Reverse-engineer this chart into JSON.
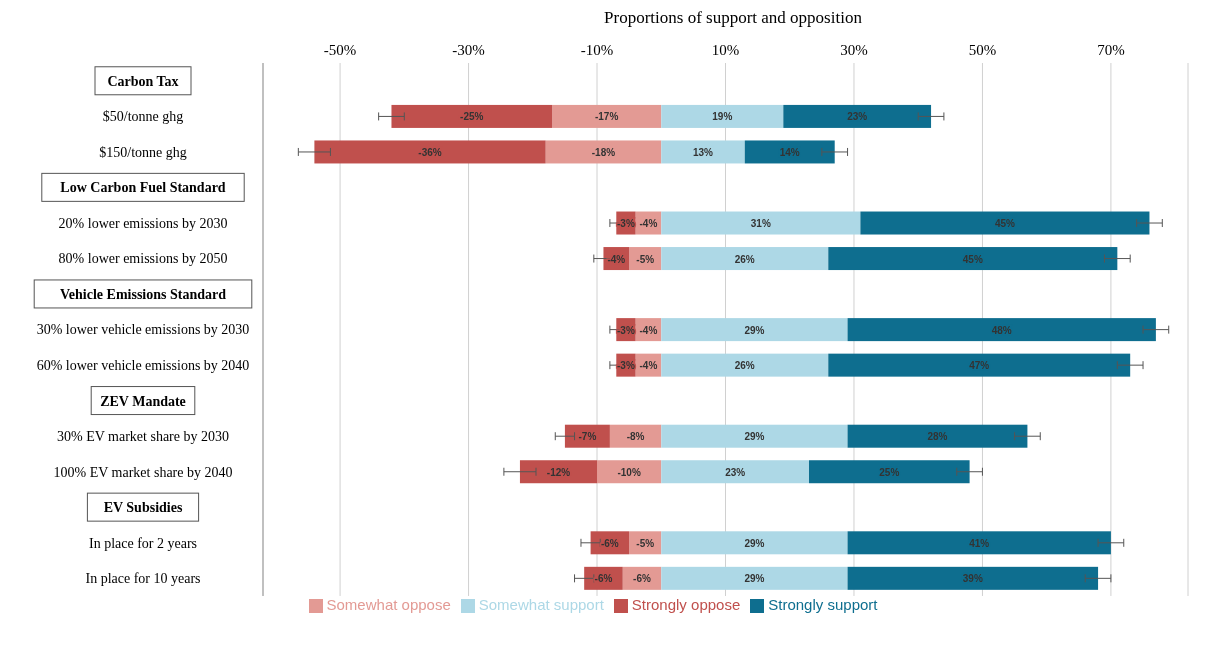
{
  "chart_data": {
    "type": "bar",
    "orientation": "horizontal",
    "stacked": true,
    "xlabel": "Proportions of support and opposition",
    "categories": [
      "Carbon Tax",
      "$50/tonne ghg",
      "$150/tonne ghg",
      "Low Carbon Fuel Standard",
      "20% lower emissions by 2030",
      "80% lower emissions by 2050",
      "Vehicle Emissions Standard",
      "30% lower vehicle emissions by 2030",
      "60% lower vehicle emissions by 2040",
      "ZEV Mandate",
      "30% EV market share by 2030",
      "100% EV market share by 2040",
      "EV Subsidies",
      "In place for 2 years",
      "In place for 10 years"
    ],
    "series": [
      {
        "name": "Somewhat oppose",
        "color": "#e39a94",
        "values": [
          null,
          -17,
          -18,
          null,
          -4,
          -5,
          null,
          -4,
          -4,
          null,
          -8,
          -10,
          null,
          -5,
          -6
        ],
        "value_labels": [
          null,
          "-17%",
          "-18%",
          null,
          "-4%",
          "-5%",
          null,
          "-4%",
          "-4%",
          null,
          "-8%",
          "-10%",
          null,
          "-5%",
          "-6%"
        ]
      },
      {
        "name": "Strongly oppose",
        "color": "#c0504d",
        "values": [
          null,
          -25,
          -36,
          null,
          -3,
          -4,
          null,
          -3,
          -3,
          null,
          -7,
          -12,
          null,
          -6,
          -6
        ],
        "value_labels": [
          null,
          "-25%",
          "-36%",
          null,
          "-3%",
          "-4%",
          null,
          "-3%",
          "-3%",
          null,
          "-7%",
          "-12%",
          null,
          "-6%",
          "-6%"
        ],
        "errors": [
          null,
          2,
          2.5,
          null,
          1,
          1.5,
          null,
          1,
          1,
          null,
          1.5,
          2.5,
          null,
          1.5,
          1.5
        ]
      },
      {
        "name": "Somewhat support",
        "color": "#add8e6",
        "values": [
          null,
          19,
          13,
          null,
          31,
          26,
          null,
          29,
          26,
          null,
          29,
          23,
          null,
          29,
          29
        ],
        "value_labels": [
          null,
          "19%",
          "13%",
          null,
          "31%",
          "26%",
          null,
          "29%",
          "26%",
          null,
          "29%",
          "23%",
          null,
          "29%",
          "29%"
        ]
      },
      {
        "name": "Strongly support",
        "color": "#0e6e8f",
        "values": [
          null,
          23,
          14,
          null,
          45,
          45,
          null,
          48,
          47,
          null,
          28,
          25,
          null,
          41,
          39
        ],
        "value_labels": [
          null,
          "23%",
          "14%",
          null,
          "45%",
          "45%",
          null,
          "48%",
          "47%",
          null,
          "28%",
          "25%",
          null,
          "41%",
          "39%"
        ],
        "errors": [
          null,
          2,
          2,
          null,
          2,
          2,
          null,
          2,
          2,
          null,
          2,
          2,
          null,
          2,
          2
        ]
      }
    ],
    "xlim": [
      -62,
      82
    ],
    "xticks": [
      {
        "value": -50,
        "label": "-50%"
      },
      {
        "value": -30,
        "label": "-30%"
      },
      {
        "value": -10,
        "label": "-10%"
      },
      {
        "value": 10,
        "label": "10%"
      },
      {
        "value": 30,
        "label": "30%"
      },
      {
        "value": 50,
        "label": "50%"
      },
      {
        "value": 70,
        "label": "70%"
      }
    ],
    "grid": "x",
    "legend": "bottom"
  }
}
